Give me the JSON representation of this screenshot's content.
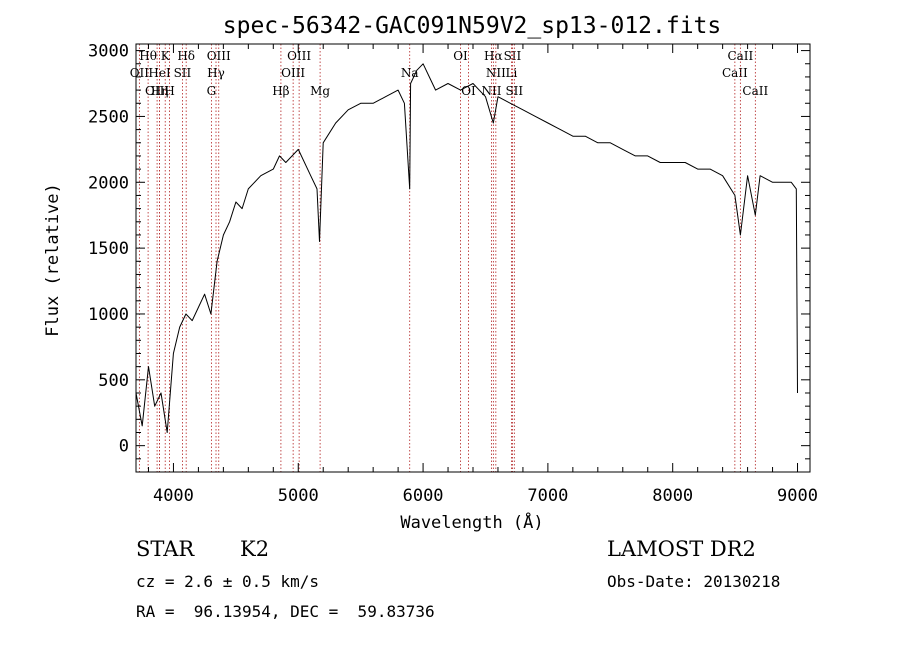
{
  "chart_data": {
    "type": "line",
    "title": "spec-56342-GAC091N59V2_sp13-012.fits",
    "xlabel": "Wavelength (Å)",
    "ylabel": "Flux (relative)",
    "xlim": [
      3700,
      9100
    ],
    "ylim": [
      -200,
      3050
    ],
    "xticks": [
      4000,
      5000,
      6000,
      7000,
      8000,
      9000
    ],
    "yticks": [
      0,
      500,
      1000,
      1500,
      2000,
      2500,
      3000
    ],
    "grid": false,
    "line_color": "#000000",
    "marker_color": "#b22222",
    "spectrum": {
      "x": [
        3700,
        3750,
        3800,
        3850,
        3900,
        3950,
        4000,
        4050,
        4100,
        4150,
        4200,
        4250,
        4300,
        4350,
        4400,
        4450,
        4500,
        4550,
        4600,
        4700,
        4800,
        4850,
        4900,
        5000,
        5100,
        5150,
        5170,
        5200,
        5300,
        5400,
        5500,
        5600,
        5700,
        5800,
        5850,
        5893,
        5900,
        5950,
        6000,
        6050,
        6100,
        6200,
        6300,
        6400,
        6500,
        6563,
        6600,
        6700,
        6800,
        6900,
        7000,
        7100,
        7200,
        7300,
        7400,
        7500,
        7600,
        7700,
        7800,
        7900,
        8000,
        8100,
        8200,
        8300,
        8400,
        8498,
        8542,
        8600,
        8662,
        8700,
        8800,
        8900,
        8950,
        8990,
        9000
      ],
      "y": [
        400,
        150,
        600,
        300,
        400,
        100,
        700,
        900,
        1000,
        950,
        1050,
        1150,
        1000,
        1400,
        1600,
        1700,
        1850,
        1800,
        1950,
        2050,
        2100,
        2200,
        2150,
        2250,
        2050,
        1950,
        1550,
        2300,
        2450,
        2550,
        2600,
        2600,
        2650,
        2700,
        2600,
        1950,
        2750,
        2850,
        2900,
        2800,
        2700,
        2750,
        2700,
        2750,
        2650,
        2450,
        2650,
        2600,
        2550,
        2500,
        2450,
        2400,
        2350,
        2350,
        2300,
        2300,
        2250,
        2200,
        2200,
        2150,
        2150,
        2150,
        2100,
        2100,
        2050,
        1900,
        1600,
        2050,
        1750,
        2050,
        2000,
        2000,
        2000,
        1950,
        400
      ]
    },
    "lines": [
      {
        "label": "Hθ",
        "wavelength": 3797,
        "row": 0
      },
      {
        "label": "OII",
        "wavelength": 3727,
        "row": 1
      },
      {
        "label": "OIII",
        "wavelength": 3869,
        "row": 2
      },
      {
        "label": "Hη",
        "wavelength": 3889,
        "row": 2
      },
      {
        "label": "HeI",
        "wavelength": 3889,
        "row": 1
      },
      {
        "label": "K",
        "wavelength": 3934,
        "row": 0
      },
      {
        "label": "H",
        "wavelength": 3969,
        "row": 2
      },
      {
        "label": "SII",
        "wavelength": 4072,
        "row": 1
      },
      {
        "label": "Hδ",
        "wavelength": 4102,
        "row": 0
      },
      {
        "label": "G",
        "wavelength": 4304,
        "row": 2
      },
      {
        "label": "Hγ",
        "wavelength": 4341,
        "row": 1
      },
      {
        "label": "OIII",
        "wavelength": 4363,
        "row": 0
      },
      {
        "label": "Hβ",
        "wavelength": 4861,
        "row": 2
      },
      {
        "label": "OIII",
        "wavelength": 4959,
        "row": 1
      },
      {
        "label": "OIII",
        "wavelength": 5007,
        "row": 0
      },
      {
        "label": "Mg",
        "wavelength": 5175,
        "row": 2
      },
      {
        "label": "Na",
        "wavelength": 5893,
        "row": 1
      },
      {
        "label": "OI",
        "wavelength": 6300,
        "row": 0
      },
      {
        "label": "OI",
        "wavelength": 6364,
        "row": 2
      },
      {
        "label": "NII",
        "wavelength": 6548,
        "row": 2
      },
      {
        "label": "Hα",
        "wavelength": 6563,
        "row": 0
      },
      {
        "label": "NII",
        "wavelength": 6583,
        "row": 1
      },
      {
        "label": "SII",
        "wavelength": 6716,
        "row": 0
      },
      {
        "label": "Li",
        "wavelength": 6708,
        "row": 1
      },
      {
        "label": "SII",
        "wavelength": 6731,
        "row": 2
      },
      {
        "label": "CaII",
        "wavelength": 8498,
        "row": 1
      },
      {
        "label": "CaII",
        "wavelength": 8542,
        "row": 0
      },
      {
        "label": "CaII",
        "wavelength": 8662,
        "row": 2
      }
    ]
  },
  "info": {
    "object_class": "STAR",
    "subclass": "K2",
    "survey": "LAMOST DR2",
    "cz": "cz = 2.6 ± 0.5 km/s",
    "obs_date": "Obs-Date: 20130218",
    "coords": "RA =  96.13954, DEC =  59.83736"
  }
}
